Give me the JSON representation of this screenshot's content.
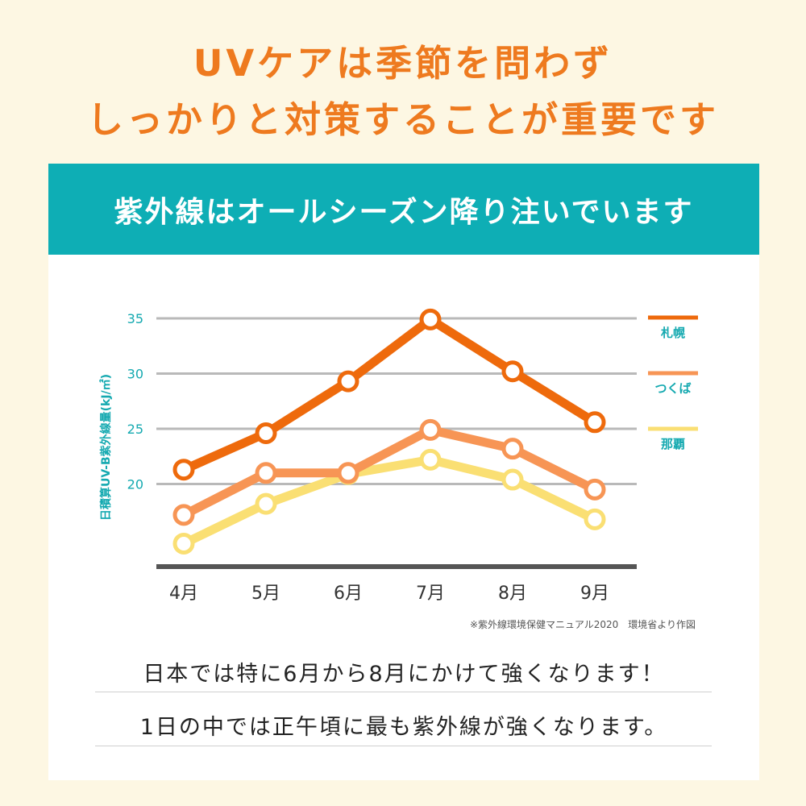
{
  "headline": {
    "line1": "UVケアは季節を問わず",
    "line2": "しっかりと対策することが重要です"
  },
  "banner": {
    "text": "紫外線はオールシーズン降り注いでいます"
  },
  "chart_data": {
    "type": "line",
    "categories": [
      "4月",
      "5月",
      "6月",
      "7月",
      "8月",
      "9月"
    ],
    "ylabel": "日積算UV-B紫外線量(kJ/㎡)",
    "yticks": [
      20,
      25,
      30,
      35
    ],
    "ylim": [
      12.3,
      35
    ],
    "grid": true,
    "legend_placement": "right",
    "series": [
      {
        "name": "札幌",
        "color": "#ee6a0c",
        "values": [
          21.3,
          24.6,
          29.3,
          34.9,
          30.2,
          25.6
        ]
      },
      {
        "name": "つくば",
        "color": "#f79555",
        "values": [
          17.2,
          21.0,
          21.0,
          24.9,
          23.2,
          19.5
        ]
      },
      {
        "name": "那覇",
        "color": "#fadf73",
        "values": [
          14.6,
          18.2,
          20.9,
          22.2,
          20.4,
          16.8
        ]
      }
    ],
    "source": "※紫外線環境保健マニュアル2020　環境省より作図"
  },
  "notes": {
    "line1": "日本では特に6月から8月にかけて強くなります！",
    "line2": "1日の中では正午頃に最も紫外線が強くなります。"
  },
  "colors": {
    "background": "#fdf7e3",
    "accent_orange": "#ee7a1f",
    "banner_teal": "#0eaeb5",
    "axis_text_teal": "#14a9b0"
  }
}
